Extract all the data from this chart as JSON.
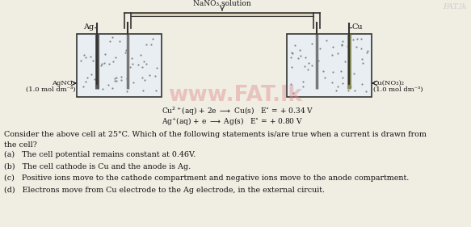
{
  "background_color": "#f0ede3",
  "watermark_text": "www.FAT.lk",
  "watermark_color": "#e09090",
  "watermark_alpha": 0.45,
  "corner_text": "FAT.lk",
  "corner_color": "#c0c0c0",
  "title_label": "NaNO₃ solution",
  "left_electrode_label": "Ag",
  "right_electrode_label": "Cu",
  "left_solution_line1": "AgNO₃",
  "left_solution_line2": "(1.0 mol dm⁻³)",
  "right_solution_line1": "Cu(NO₃)₂",
  "right_solution_line2": "(1.0 mol dm⁻³)",
  "question_text": "Consider the above cell at 25°C. Which of the following statements is/are true when a current is drawn from\nthe cell?",
  "options": [
    "(a)   The cell potential remains constant at 0.46V.",
    "(b)   The cell cathode is Cu and the anode is Ag.",
    "(c)   Positive ions move to the cathode compartment and negative ions move to the anode compartment.",
    "(d)   Electrons move from Cu electrode to the Ag electrode, in the external circuit."
  ],
  "beaker_fill": "#e8eef2",
  "electrode_dark": "#444444",
  "line_color": "#333333",
  "text_color": "#111111",
  "serif_font": "serif"
}
